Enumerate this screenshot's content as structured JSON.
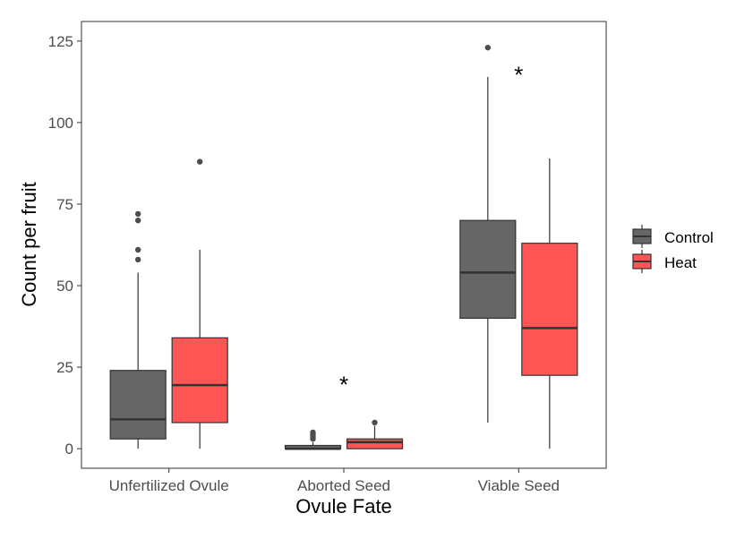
{
  "chart_data": {
    "type": "boxplot",
    "xlabel": "Ovule Fate",
    "ylabel": "Count per fruit",
    "ylim": [
      -6,
      131
    ],
    "yticks": [
      0,
      25,
      50,
      75,
      100,
      125
    ],
    "grid": false,
    "legend_position": "right",
    "categories": [
      "Unfertilized Ovule",
      "Aborted Seed",
      "Viable Seed"
    ],
    "series": [
      {
        "name": "Control",
        "color": "#666666",
        "boxes": [
          {
            "min": 0,
            "q1": 3,
            "median": 9,
            "q3": 24,
            "max": 54,
            "outliers": [
              58,
              61,
              70,
              72
            ]
          },
          {
            "min": 0,
            "q1": 0,
            "median": 0,
            "q3": 1,
            "max": 2,
            "outliers": [
              3,
              3.5,
              4,
              4.5,
              5
            ]
          },
          {
            "min": 8,
            "q1": 40,
            "median": 54,
            "q3": 70,
            "max": 114,
            "outliers": [
              123
            ]
          }
        ]
      },
      {
        "name": "Heat",
        "color": "#FF5555",
        "boxes": [
          {
            "min": 0,
            "q1": 8,
            "median": 19.5,
            "q3": 34,
            "max": 61,
            "outliers": [
              88
            ]
          },
          {
            "min": 0,
            "q1": 0,
            "median": 2,
            "q3": 3,
            "max": 7,
            "outliers": [
              8
            ]
          },
          {
            "min": 0,
            "q1": 22.5,
            "median": 37,
            "q3": 63,
            "max": 89,
            "outliers": []
          }
        ]
      }
    ],
    "annotations": [
      {
        "text": "*",
        "category": "Aborted Seed",
        "y": 21
      },
      {
        "text": "*",
        "category": "Viable Seed",
        "y": 116
      }
    ]
  }
}
